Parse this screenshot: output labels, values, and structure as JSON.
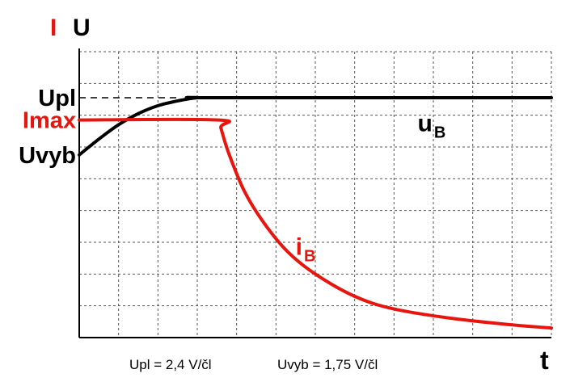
{
  "chart_data": {
    "type": "line",
    "title": "",
    "xlabel": "t",
    "ylabel_parts": [
      {
        "text": "I",
        "color": "#e8140e"
      },
      {
        "text": "U",
        "color": "#000000"
      }
    ],
    "xlim": [
      0,
      12
    ],
    "ylim": [
      0,
      9
    ],
    "grid": true,
    "y_levels": [
      {
        "text": "Upl",
        "value": 7.55,
        "color": "#000000"
      },
      {
        "text": "Imax",
        "value": 6.85,
        "color": "#e8140e"
      },
      {
        "text": "Uvyb",
        "value": 5.75,
        "color": "#000000"
      }
    ],
    "reference_line": {
      "value": 7.55,
      "style": "dashed",
      "x_range": [
        0,
        2.5
      ]
    },
    "series": [
      {
        "name": "u",
        "subscript": "B",
        "color": "#000000",
        "label_at": [
          8.6,
          6.5
        ],
        "points": [
          [
            0,
            5.75
          ],
          [
            0.5,
            6.25
          ],
          [
            1.0,
            6.7
          ],
          [
            1.5,
            7.05
          ],
          [
            2.0,
            7.3
          ],
          [
            2.5,
            7.45
          ],
          [
            3.0,
            7.55
          ],
          [
            3.5,
            7.55
          ],
          [
            12,
            7.55
          ]
        ]
      },
      {
        "name": "i",
        "subscript": "B",
        "color": "#e8140e",
        "label_at": [
          5.5,
          2.6
        ],
        "points": [
          [
            0,
            6.85
          ],
          [
            3.55,
            6.85
          ],
          [
            3.6,
            6.6
          ],
          [
            3.8,
            5.8
          ],
          [
            4.2,
            4.6
          ],
          [
            4.7,
            3.6
          ],
          [
            5.3,
            2.7
          ],
          [
            6.0,
            2.0
          ],
          [
            7.0,
            1.3
          ],
          [
            8.0,
            0.9
          ],
          [
            9.5,
            0.6
          ],
          [
            11.0,
            0.4
          ],
          [
            12.0,
            0.3
          ]
        ]
      }
    ],
    "annotations": [
      "Upl = 2,4 V/čl",
      "Uvyb = 1,75 V/čl"
    ]
  }
}
